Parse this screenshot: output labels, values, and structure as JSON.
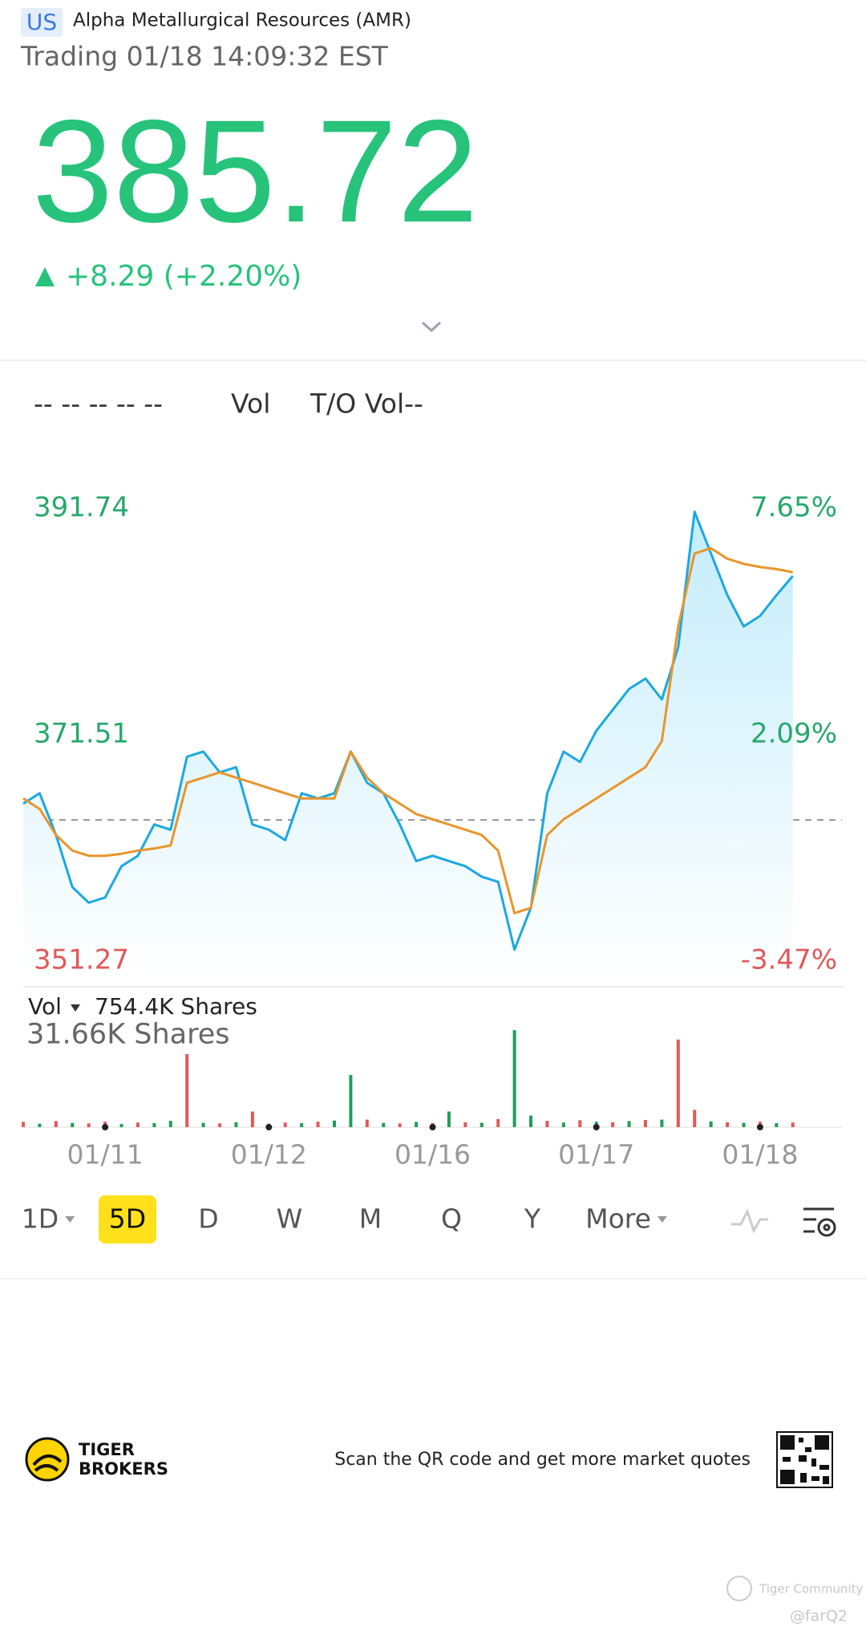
{
  "header": {
    "market": "US",
    "name": "Alpha Metallurgical Resources (AMR)",
    "status": "Trading 01/18 14:09:32 EST"
  },
  "quote": {
    "price": "385.72",
    "change": "+8.29 (+2.20%)"
  },
  "indicators": {
    "items": [
      "-- -- -- -- --",
      "Vol",
      "T/O Vol--"
    ]
  },
  "chart_data": [
    {
      "type": "line",
      "x": [
        0,
        1,
        2,
        3,
        4,
        5,
        6,
        7,
        8,
        9,
        10,
        11,
        12,
        13,
        14,
        15,
        16,
        17,
        18,
        19,
        20,
        21,
        22,
        23,
        24,
        25,
        26,
        27,
        28,
        29,
        30,
        31,
        32,
        33,
        34,
        35,
        36,
        37,
        38,
        39,
        40,
        41,
        42,
        43,
        44,
        45,
        46,
        47
      ],
      "xlim": [
        0,
        50
      ],
      "xticks": [
        {
          "value": 5,
          "label": "01/11"
        },
        {
          "value": 15,
          "label": "01/12"
        },
        {
          "value": 25,
          "label": "01/16"
        },
        {
          "value": 35,
          "label": "01/17"
        },
        {
          "value": 45,
          "label": "01/18"
        }
      ],
      "ylim": [
        351.27,
        391.74
      ],
      "yticks": [
        391.74,
        371.51,
        351.27
      ],
      "y2lim": [
        -3.47,
        7.65
      ],
      "y2ticks": [
        {
          "value": 7.65,
          "label": "7.65%"
        },
        {
          "value": 2.09,
          "label": "2.09%"
        },
        {
          "value": -3.47,
          "label": "-3.47%"
        }
      ],
      "reference": 363.9,
      "series": [
        {
          "color": "#1ba8e0",
          "area": true,
          "values": [
            365.35,
            366.28,
            362.55,
            357.89,
            356.49,
            356.96,
            359.76,
            360.69,
            363.49,
            363.02,
            369.55,
            370.01,
            368.15,
            368.61,
            363.49,
            363.02,
            362.09,
            366.28,
            365.82,
            366.28,
            370.01,
            367.22,
            366.28,
            363.49,
            360.22,
            360.69,
            360.22,
            359.76,
            358.82,
            358.36,
            352.3,
            356.03,
            366.28,
            370.01,
            369.08,
            371.88,
            373.74,
            375.61,
            376.54,
            374.68,
            379.34,
            391.46,
            387.73,
            384.0,
            381.2,
            382.14,
            384.0,
            385.72
          ]
        },
        {
          "color": "#e8952c",
          "values": [
            365.82,
            364.88,
            362.55,
            361.15,
            360.69,
            360.69,
            360.87,
            361.15,
            361.34,
            361.62,
            367.22,
            367.68,
            368.15,
            367.68,
            367.22,
            366.75,
            366.28,
            365.82,
            365.82,
            365.82,
            370.01,
            367.68,
            366.28,
            365.35,
            364.42,
            363.95,
            363.49,
            363.02,
            362.55,
            361.15,
            355.56,
            356.03,
            362.55,
            363.95,
            364.88,
            365.82,
            366.75,
            367.68,
            368.61,
            370.95,
            381.2,
            387.73,
            388.2,
            387.26,
            386.8,
            386.52,
            386.33,
            386.05
          ]
        }
      ]
    },
    {
      "type": "bar",
      "label": "Vol",
      "total": "754.4K Shares",
      "x": [
        0,
        1,
        2,
        3,
        4,
        5,
        6,
        7,
        8,
        9,
        10,
        11,
        12,
        13,
        14,
        15,
        16,
        17,
        18,
        19,
        20,
        21,
        22,
        23,
        24,
        25,
        26,
        27,
        28,
        29,
        30,
        31,
        32,
        33,
        34,
        35,
        36,
        37,
        38,
        39,
        40,
        41,
        42,
        43,
        44,
        45,
        46,
        47
      ],
      "xlim": [
        0,
        50
      ],
      "ylim": [
        0,
        36000
      ],
      "yticks": [
        {
          "value": 31660,
          "label": "31.66K Shares"
        }
      ],
      "values": [
        1800,
        1200,
        2100,
        1500,
        1300,
        1900,
        1100,
        1600,
        1400,
        2200,
        25200,
        1500,
        1300,
        1700,
        5400,
        1200,
        1600,
        1400,
        1900,
        2300,
        18000,
        2600,
        1500,
        1300,
        1800,
        1400,
        5400,
        1700,
        1500,
        2800,
        33480,
        4000,
        2200,
        1600,
        2400,
        1900,
        1700,
        2100,
        2500,
        2600,
        30240,
        6000,
        2000,
        1700,
        1500,
        1900,
        1400,
        1600
      ],
      "colors": [
        "#e05a5a",
        "#1f9e5a",
        "#e05a5a",
        "#1f9e5a",
        "#e05a5a",
        "#e05a5a",
        "#1f9e5a",
        "#e05a5a",
        "#1f9e5a",
        "#1f9e5a",
        "#e05a5a",
        "#1f9e5a",
        "#e05a5a",
        "#1f9e5a",
        "#e05a5a",
        "#1f9e5a",
        "#e05a5a",
        "#1f9e5a",
        "#e05a5a",
        "#1f9e5a",
        "#1f9e5a",
        "#e05a5a",
        "#1f9e5a",
        "#e05a5a",
        "#1f9e5a",
        "#e05a5a",
        "#1f9e5a",
        "#e05a5a",
        "#1f9e5a",
        "#e05a5a",
        "#1f9e5a",
        "#1f9e5a",
        "#e05a5a",
        "#1f9e5a",
        "#e05a5a",
        "#1f9e5a",
        "#e05a5a",
        "#1f9e5a",
        "#e05a5a",
        "#1f9e5a",
        "#e05a5a",
        "#e05a5a",
        "#1f9e5a",
        "#e05a5a",
        "#1f9e5a",
        "#e05a5a",
        "#1f9e5a",
        "#e05a5a"
      ]
    }
  ],
  "periods": {
    "items": [
      "1D",
      "5D",
      "D",
      "W",
      "M",
      "Q",
      "Y",
      "More"
    ],
    "selected": 1
  },
  "footer": {
    "brand": [
      "TIGER",
      "BROKERS"
    ],
    "prompt": "Scan the QR code and get more market quotes"
  },
  "watermark": {
    "text": "Tiger Community",
    "handle": "@farQ2"
  }
}
